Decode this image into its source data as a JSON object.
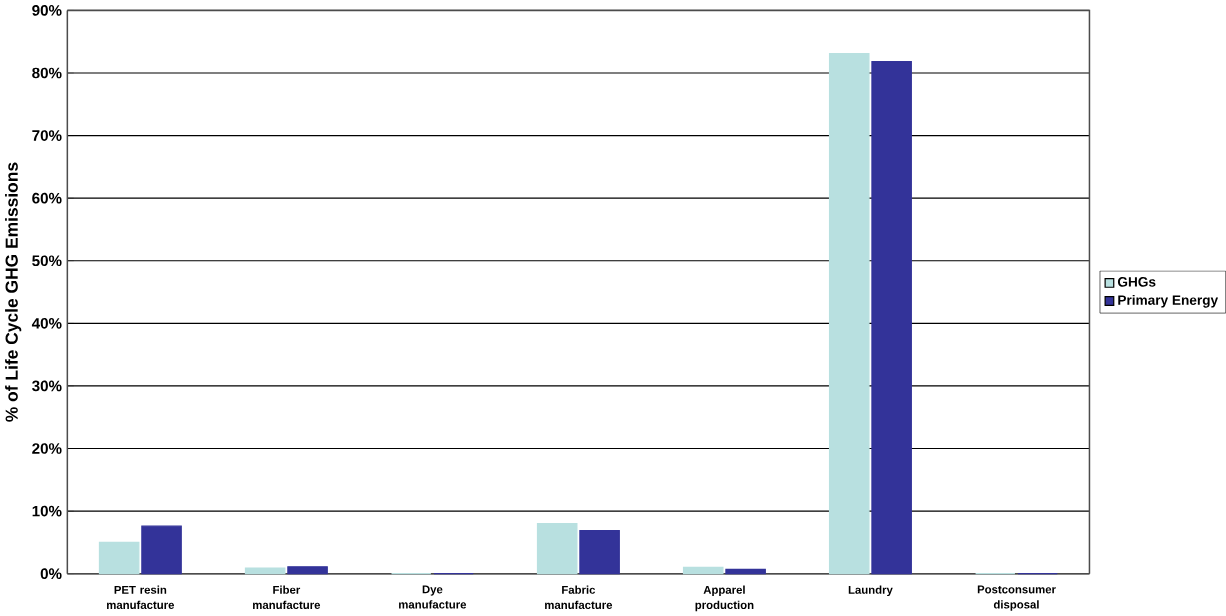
{
  "chart_data": {
    "type": "bar",
    "ylabel": "% of Life Cycle GHG Emissions",
    "categories": [
      "PET resin manufacture",
      "Fiber manufacture",
      "Dye manufacture",
      "Fabric manufacture",
      "Apparel production",
      "Laundry",
      "Postconsumer disposal"
    ],
    "series": [
      {
        "name": "GHGs",
        "color": "#b8e0e0",
        "values": [
          5.0,
          0.9,
          0,
          8.0,
          1.0,
          83.1,
          0
        ]
      },
      {
        "name": "Primary Energy",
        "color": "#333399",
        "values": [
          7.6,
          1.1,
          0,
          6.9,
          0.7,
          81.8,
          0
        ]
      }
    ],
    "ylim": [
      0,
      90
    ],
    "yticks": [
      {
        "value": 0,
        "label": "0%"
      },
      {
        "value": 10,
        "label": "10%"
      },
      {
        "value": 20,
        "label": "20%"
      },
      {
        "value": 30,
        "label": "30%"
      },
      {
        "value": 40,
        "label": "40%"
      },
      {
        "value": 50,
        "label": "50%"
      },
      {
        "value": 60,
        "label": "60%"
      },
      {
        "value": 70,
        "label": "70%"
      },
      {
        "value": 80,
        "label": "80%"
      },
      {
        "value": 90,
        "label": "90%"
      }
    ],
    "grid": "y",
    "legend": "right"
  }
}
